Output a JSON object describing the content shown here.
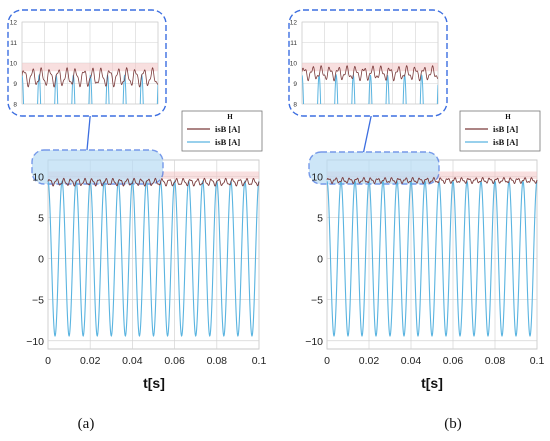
{
  "colors": {
    "measured": "#7a3a3a",
    "reference": "#5ab4e0",
    "highlight_fill": "#b9dcf5",
    "highlight_stroke": "#3c6ee0",
    "grid": "#d4d4d4",
    "red_band": "#f2c4c4"
  },
  "chart_data": [
    {
      "panel": "a",
      "caption": "(a)",
      "type": "line",
      "xlabel": "t[s]",
      "ylabel": "",
      "xlim": [
        0,
        0.1
      ],
      "ylim": [
        -11,
        12
      ],
      "x_ticks": [
        "0",
        "0.02",
        "0.04",
        "0.06",
        "0.08",
        "0.1"
      ],
      "y_ticks": [
        "10",
        "5",
        "0",
        "−5",
        "−10"
      ],
      "legend": {
        "header": "H",
        "entries": [
          "isB  [A]",
          "isB  [A]"
        ],
        "position": "top-right"
      },
      "series": [
        {
          "role": "reference",
          "name": "isB  [A]",
          "frequency_hz": 150,
          "amplitude": 9.4,
          "offset": 0.0,
          "phase_deg": 90,
          "ceiling": 9.5
        },
        {
          "role": "measured",
          "name": "isB  [A]",
          "mean": 9.3,
          "ripple": 0.35,
          "ripple_frequency_hz": 300
        }
      ],
      "zoom_inset": {
        "x_range": [
          0,
          0.053
        ],
        "y_range": [
          8,
          12
        ],
        "y_ticks": [
          "12",
          "11",
          "10",
          "9",
          "8"
        ]
      },
      "grid": true
    },
    {
      "panel": "b",
      "caption": "(b)",
      "type": "line",
      "xlabel": "t[s]",
      "ylabel": "",
      "xlim": [
        0,
        0.1
      ],
      "ylim": [
        -11,
        12
      ],
      "x_ticks": [
        "0",
        "0.02",
        "0.04",
        "0.06",
        "0.08",
        "0.1"
      ],
      "y_ticks": [
        "10",
        "5",
        "0",
        "−5",
        "−10"
      ],
      "legend": {
        "header": "H",
        "entries": [
          "isB  [A]",
          "isB  [A]"
        ],
        "position": "top-right"
      },
      "series": [
        {
          "role": "reference",
          "name": "isB  [A]",
          "frequency_hz": 150,
          "amplitude": 9.4,
          "offset": 0.0,
          "phase_deg": 90,
          "ceiling": 9.7
        },
        {
          "role": "measured",
          "name": "isB  [A]",
          "mean": 9.5,
          "ripple": 0.25,
          "ripple_frequency_hz": 300
        }
      ],
      "zoom_inset": {
        "x_range": [
          0,
          0.053
        ],
        "y_range": [
          8,
          12
        ],
        "y_ticks": [
          "12",
          "11",
          "10",
          "9",
          "8"
        ]
      },
      "grid": true
    }
  ]
}
